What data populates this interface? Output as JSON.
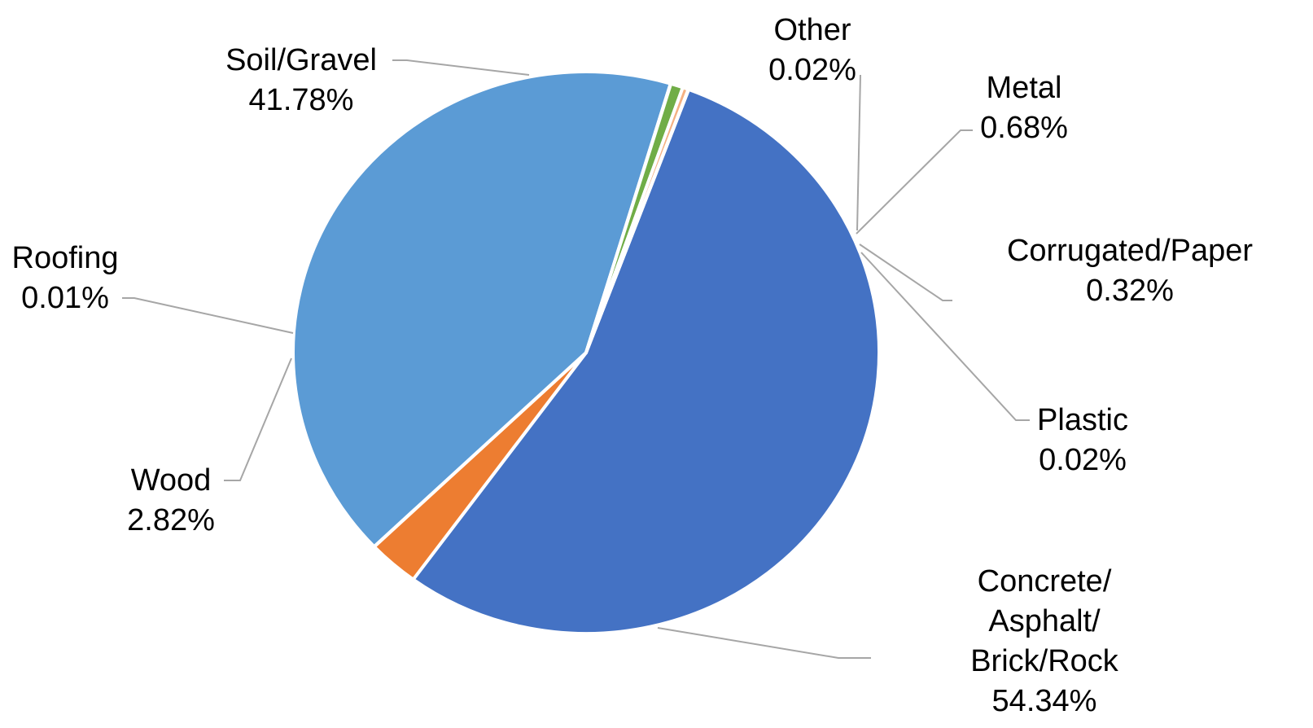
{
  "chart_data": {
    "type": "pie",
    "title": "",
    "legend": "none",
    "slices": [
      {
        "label": [
          "Concrete/",
          "Asphalt/",
          "Brick/Rock"
        ],
        "value": 54.34,
        "value_label": "54.34%",
        "color": "#4472C4"
      },
      {
        "label": [
          "Wood"
        ],
        "value": 2.82,
        "value_label": "2.82%",
        "color": "#ED7D31"
      },
      {
        "label": [
          "Roofing"
        ],
        "value": 0.01,
        "value_label": "0.01%",
        "color": "#A5A5A5"
      },
      {
        "label": [
          "Soil/Gravel"
        ],
        "value": 41.78,
        "value_label": "41.78%",
        "color": "#5B9BD5"
      },
      {
        "label": [
          "Other"
        ],
        "value": 0.02,
        "value_label": "0.02%",
        "color": "#264478"
      },
      {
        "label": [
          "Metal"
        ],
        "value": 0.68,
        "value_label": "0.68%",
        "color": "#70AD47"
      },
      {
        "label": [
          "Corrugated/Paper"
        ],
        "value": 0.32,
        "value_label": "0.32%",
        "color": "#F4B183"
      },
      {
        "label": [
          "Plastic"
        ],
        "value": 0.02,
        "value_label": "0.02%",
        "color": "#FFC000"
      }
    ]
  }
}
